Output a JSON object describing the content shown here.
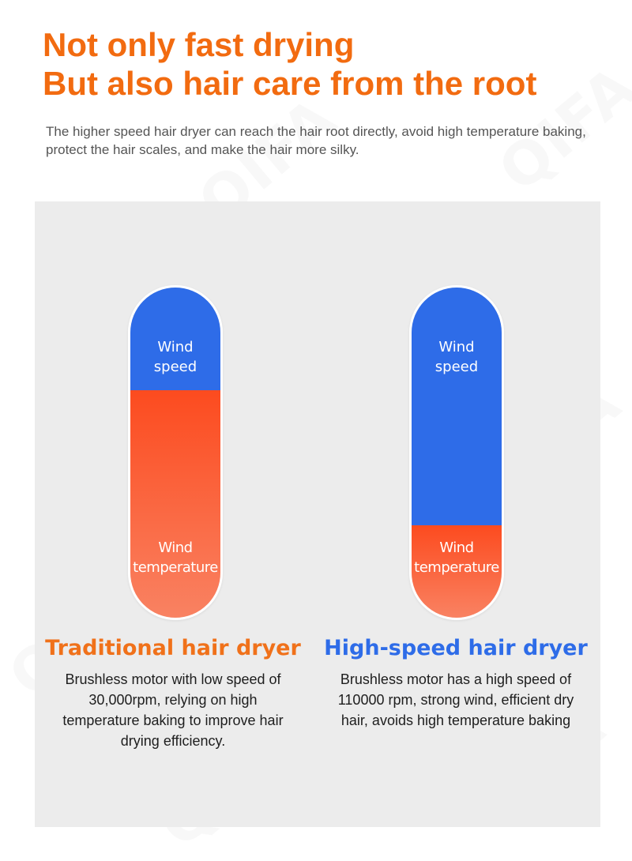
{
  "watermark": "QIFA",
  "header": {
    "headline_line1": "Not only fast drying",
    "headline_line2": "But also hair care from the root",
    "subtitle": "The higher speed hair dryer can reach the hair root directly, avoid high temperature baking, protect the hair scales, and make the hair more silky."
  },
  "comparison": {
    "traditional": {
      "wind_label_line1": "Wind",
      "wind_label_line2": "speed",
      "temp_label_line1": "Wind",
      "temp_label_line2": "temperature",
      "wind_share": 0.31,
      "temp_share": 0.69,
      "title": "Traditional hair dryer",
      "description": "Brushless motor with low speed of 30,000rpm, relying on high temperature baking to improve hair drying efficiency."
    },
    "high_speed": {
      "wind_label_line1": "Wind",
      "wind_label_line2": "speed",
      "temp_label_line1": "Wind",
      "temp_label_line2": "temperature",
      "wind_share": 0.72,
      "temp_share": 0.28,
      "title": "High-speed hair dryer",
      "description": "Brushless motor has a high speed of 110000 rpm, strong wind, efficient dry hair, avoids high temperature baking"
    }
  },
  "colors": {
    "headline": "#f26b10",
    "wind": "#2e6ce8",
    "temperature_top": "#fc4b1f",
    "temperature_bottom": "#f98262",
    "panel": "#ececec"
  }
}
